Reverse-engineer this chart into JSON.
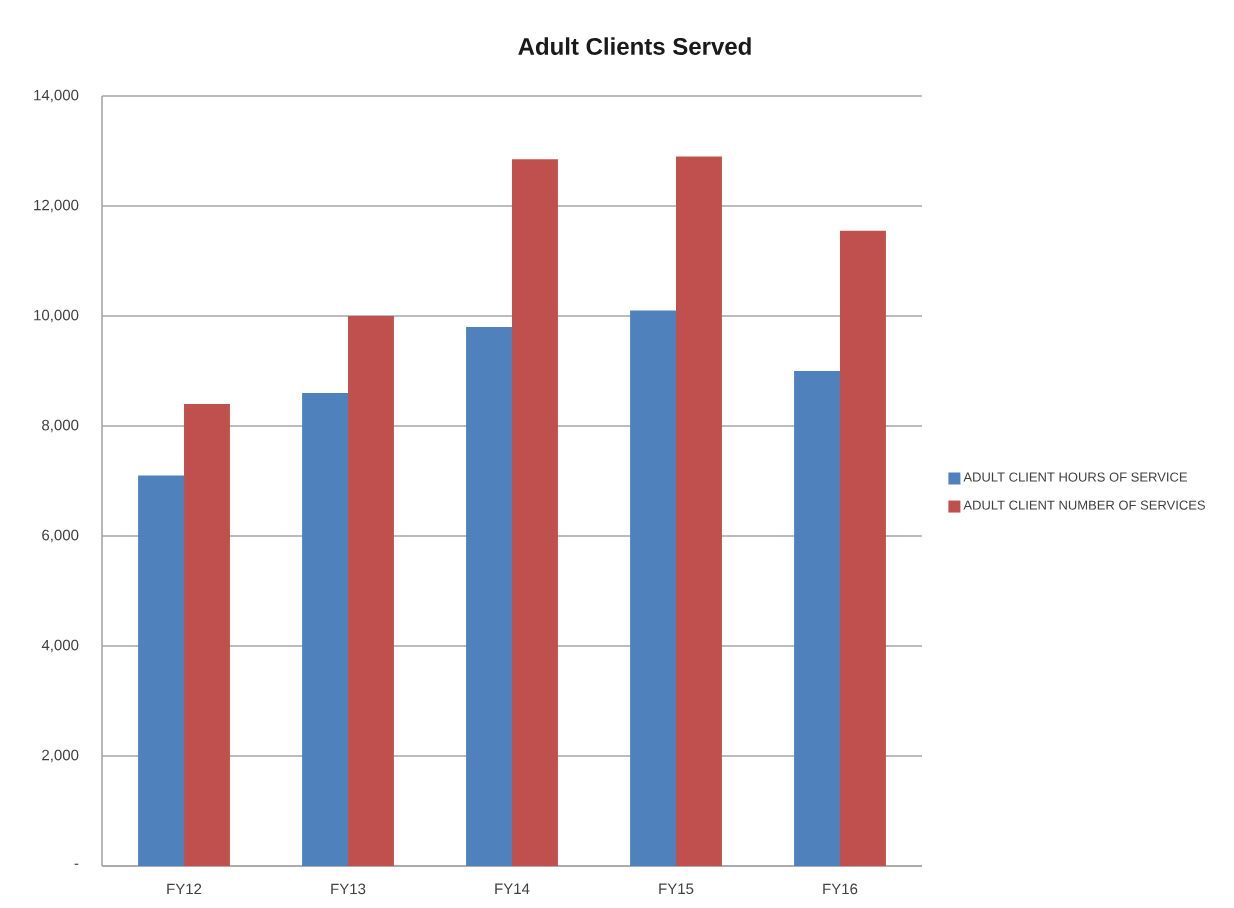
{
  "chart_data": {
    "type": "bar",
    "title": "Adult Clients Served",
    "categories": [
      "FY12",
      "FY13",
      "FY14",
      "FY15",
      "FY16"
    ],
    "series": [
      {
        "name": "ADULT CLIENT HOURS OF SERVICE",
        "color": "#4f81bd",
        "values": [
          7100,
          8600,
          9800,
          10100,
          9000
        ]
      },
      {
        "name": "ADULT CLIENT NUMBER OF SERVICES",
        "color": "#c0504d",
        "values": [
          8400,
          10000,
          12850,
          12900,
          11550
        ]
      }
    ],
    "ylim": [
      0,
      14000
    ],
    "yticks": [
      {
        "value": 0,
        "label": "-"
      },
      {
        "value": 2000,
        "label": "2,000"
      },
      {
        "value": 4000,
        "label": "4,000"
      },
      {
        "value": 6000,
        "label": "6,000"
      },
      {
        "value": 8000,
        "label": "8,000"
      },
      {
        "value": 10000,
        "label": "10,000"
      },
      {
        "value": 12000,
        "label": "12,000"
      },
      {
        "value": 14000,
        "label": "14,000"
      }
    ],
    "grid": "y",
    "legend": "right"
  }
}
